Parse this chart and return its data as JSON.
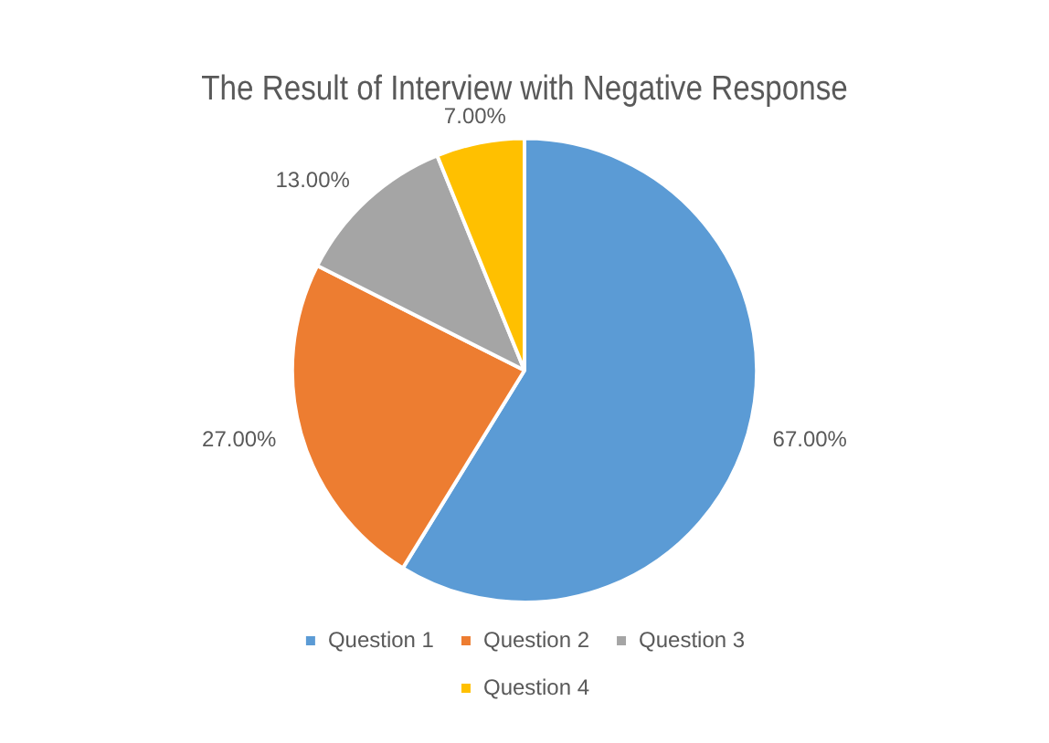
{
  "chart_data": {
    "type": "pie",
    "title": "The Result of Interview with Negative Response",
    "categories": [
      "Question 1",
      "Question 2",
      "Question 3",
      "Question 4"
    ],
    "values": [
      67,
      27,
      13,
      7
    ],
    "value_labels": [
      "67.00%",
      "27.00%",
      "13.00%",
      "7.00%"
    ],
    "colors": [
      "#5b9bd5",
      "#ed7d31",
      "#a5a5a5",
      "#ffc000"
    ],
    "legend": "bottom"
  }
}
